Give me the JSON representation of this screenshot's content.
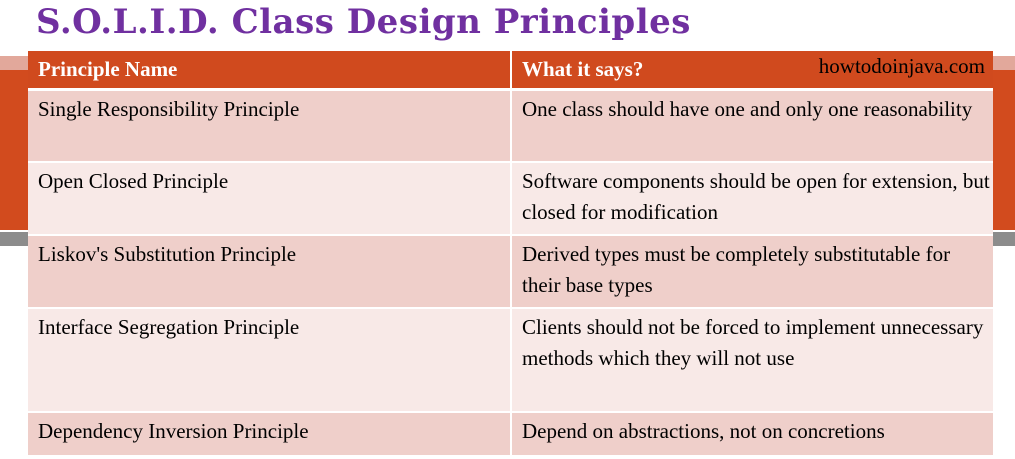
{
  "title": "S.O.L.I.D. Class Design Principles",
  "watermark": "howtodoinjava.com",
  "colors": {
    "title": "#7030a0",
    "header_bg": "#d04a1e",
    "row_odd": "#efcfca",
    "row_even": "#f8e9e7"
  },
  "table": {
    "headers": [
      "Principle Name",
      "What it says?"
    ],
    "rows": [
      {
        "name": "Single Responsibility Principle",
        "description": "One class should have one and only one reasonability"
      },
      {
        "name": "Open Closed Principle",
        "description": "Software components should be open for extension, but closed for modification"
      },
      {
        "name": "Liskov's Substitution Principle",
        "description": "Derived types must be completely substitutable for their base types"
      },
      {
        "name": "Interface Segregation Principle",
        "description": "Clients should not be forced to implement unnecessary methods which they will not use"
      },
      {
        "name": "Dependency Inversion Principle",
        "description": "Depend on abstractions, not on concretions"
      }
    ]
  }
}
